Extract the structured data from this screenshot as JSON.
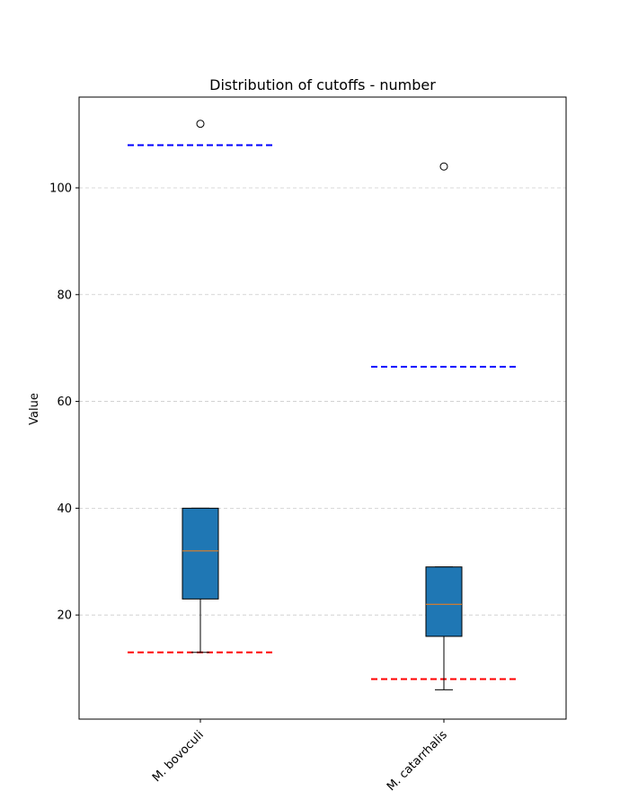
{
  "chart_data": {
    "type": "box",
    "title": "Distribution of cutoffs - number",
    "xlabel": "",
    "ylabel": "Value",
    "ylim": [
      0.5,
      117
    ],
    "yticks": [
      20,
      40,
      60,
      80,
      100
    ],
    "grid": "horizontal dashed",
    "categories": [
      "M. bovoculi",
      "M. catarrhalis"
    ],
    "boxes": [
      {
        "category": "M. bovoculi",
        "whisker_low": 13,
        "q1": 23,
        "median": 32,
        "q3": 40,
        "whisker_high": 40,
        "outliers": [
          112
        ],
        "upper_cutoff": 108,
        "lower_cutoff": 13
      },
      {
        "category": "M. catarrhalis",
        "whisker_low": 6,
        "q1": 16,
        "median": 22,
        "q3": 29,
        "whisker_high": 29,
        "outliers": [
          104
        ],
        "upper_cutoff": 66.5,
        "lower_cutoff": 8
      }
    ],
    "colors": {
      "box_fill": "#1f77b4",
      "median": "#ff7f0e",
      "upper_cutoff": "#0000ff",
      "lower_cutoff": "#ff0000",
      "grid": "#cccccc"
    }
  }
}
